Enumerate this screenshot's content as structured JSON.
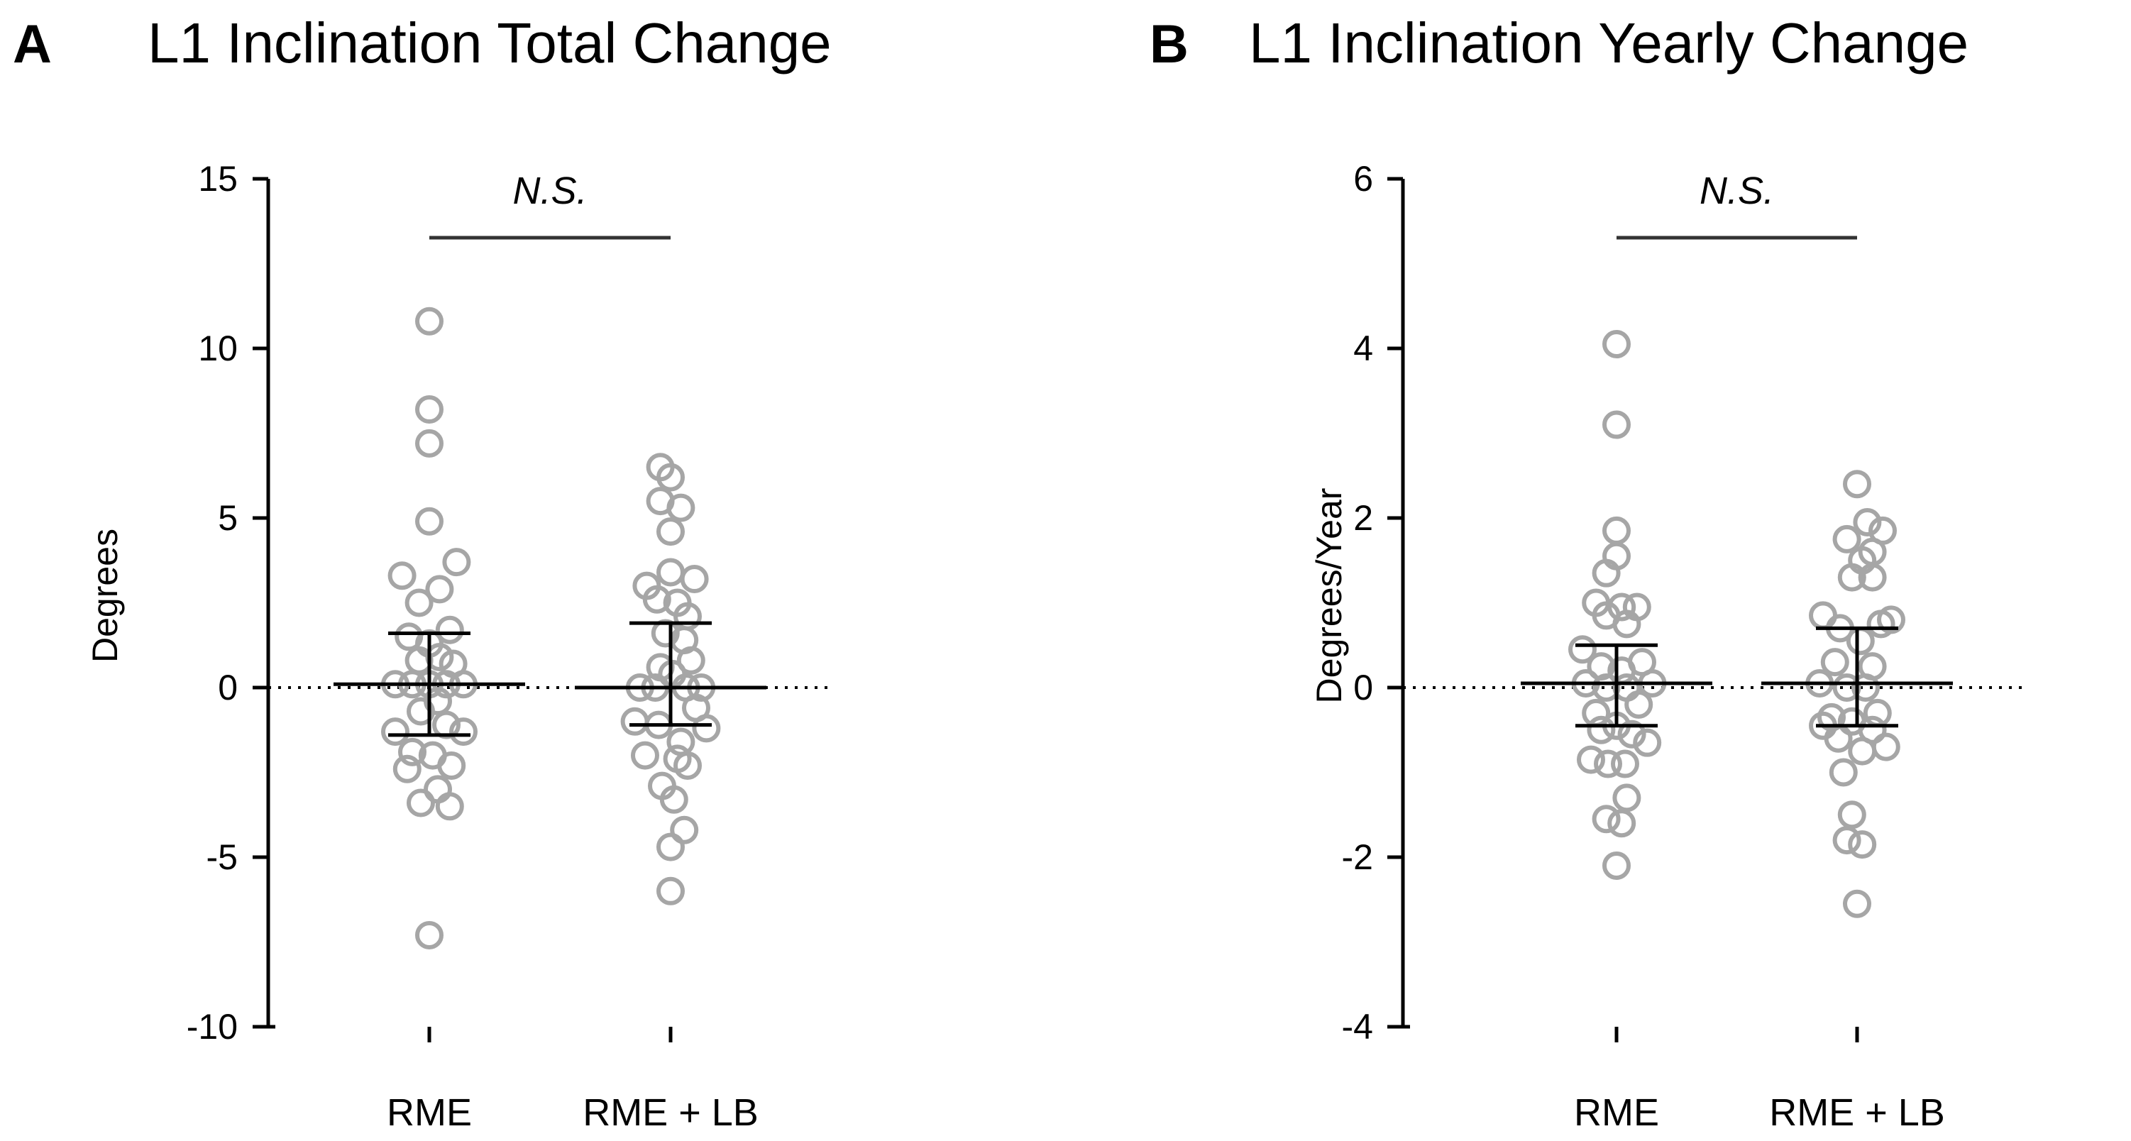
{
  "chart_data": [
    {
      "type": "scatter",
      "panel_letter": "A",
      "title": "L1 Inclination Total Change",
      "xlabel": "",
      "ylabel": "Degrees",
      "ylim": [
        -10,
        15
      ],
      "yticks": [
        15,
        10,
        5,
        0,
        -5,
        -10
      ],
      "ytick_labels": [
        "15",
        "10",
        "5",
        "0",
        "-5",
        "-10"
      ],
      "categories": [
        "RME",
        "RME + LB"
      ],
      "reference_line_y": 0,
      "significance": {
        "label": "N.S.",
        "from": "RME",
        "to": "RME + LB"
      },
      "series": [
        {
          "name": "RME",
          "mean": 0.1,
          "error_upper": 1.6,
          "error_lower": -1.4,
          "points": [
            {
              "y": 10.8,
              "jitter": 0.0
            },
            {
              "y": 8.2,
              "jitter": 0.0
            },
            {
              "y": 7.2,
              "jitter": 0.0
            },
            {
              "y": 4.9,
              "jitter": 0.0
            },
            {
              "y": 3.7,
              "jitter": 1.6
            },
            {
              "y": 3.3,
              "jitter": -1.6
            },
            {
              "y": 2.9,
              "jitter": 0.6
            },
            {
              "y": 2.5,
              "jitter": -0.6
            },
            {
              "y": 1.7,
              "jitter": 1.2
            },
            {
              "y": 1.5,
              "jitter": -1.2
            },
            {
              "y": 1.3,
              "jitter": 0.0
            },
            {
              "y": 0.9,
              "jitter": 0.6
            },
            {
              "y": 0.8,
              "jitter": -0.6
            },
            {
              "y": 0.7,
              "jitter": 1.4
            },
            {
              "y": 0.1,
              "jitter": -2.0
            },
            {
              "y": 0.1,
              "jitter": -1.0
            },
            {
              "y": 0.1,
              "jitter": 0.0
            },
            {
              "y": 0.1,
              "jitter": 1.0
            },
            {
              "y": 0.1,
              "jitter": 2.0
            },
            {
              "y": -0.4,
              "jitter": 0.5
            },
            {
              "y": -0.7,
              "jitter": -0.5
            },
            {
              "y": -1.1,
              "jitter": 1.0
            },
            {
              "y": -1.3,
              "jitter": -2.0
            },
            {
              "y": -1.3,
              "jitter": 2.0
            },
            {
              "y": -1.9,
              "jitter": -1.0
            },
            {
              "y": -2.0,
              "jitter": 0.2
            },
            {
              "y": -2.3,
              "jitter": 1.3
            },
            {
              "y": -2.4,
              "jitter": -1.3
            },
            {
              "y": -3.0,
              "jitter": 0.5
            },
            {
              "y": -3.4,
              "jitter": -0.5
            },
            {
              "y": -3.5,
              "jitter": 1.2
            },
            {
              "y": -7.3,
              "jitter": 0.0
            }
          ]
        },
        {
          "name": "RME + LB",
          "mean": 0.0,
          "error_upper": 1.9,
          "error_lower": -1.1,
          "points": [
            {
              "y": 6.5,
              "jitter": -0.6
            },
            {
              "y": 6.2,
              "jitter": 0.0
            },
            {
              "y": 5.5,
              "jitter": -0.6
            },
            {
              "y": 5.3,
              "jitter": 0.6
            },
            {
              "y": 4.6,
              "jitter": 0.0
            },
            {
              "y": 3.4,
              "jitter": 0.0
            },
            {
              "y": 3.2,
              "jitter": 1.4
            },
            {
              "y": 3.0,
              "jitter": -1.4
            },
            {
              "y": 2.6,
              "jitter": -0.8
            },
            {
              "y": 2.5,
              "jitter": 0.4
            },
            {
              "y": 2.1,
              "jitter": 1.0
            },
            {
              "y": 1.6,
              "jitter": -0.3
            },
            {
              "y": 1.4,
              "jitter": 0.8
            },
            {
              "y": 0.8,
              "jitter": 1.2
            },
            {
              "y": 0.6,
              "jitter": -0.6
            },
            {
              "y": 0.4,
              "jitter": 0.1
            },
            {
              "y": 0.0,
              "jitter": -1.8
            },
            {
              "y": 0.0,
              "jitter": -0.9
            },
            {
              "y": 0.0,
              "jitter": 0.9
            },
            {
              "y": 0.0,
              "jitter": 1.8
            },
            {
              "y": -0.6,
              "jitter": 1.5
            },
            {
              "y": -1.0,
              "jitter": -2.1
            },
            {
              "y": -1.1,
              "jitter": -0.7
            },
            {
              "y": -1.2,
              "jitter": 2.1
            },
            {
              "y": -1.6,
              "jitter": 0.6
            },
            {
              "y": -2.0,
              "jitter": -1.5
            },
            {
              "y": -2.1,
              "jitter": 0.4
            },
            {
              "y": -2.3,
              "jitter": 1.0
            },
            {
              "y": -2.9,
              "jitter": -0.5
            },
            {
              "y": -3.3,
              "jitter": 0.2
            },
            {
              "y": -4.2,
              "jitter": 0.8
            },
            {
              "y": -4.7,
              "jitter": 0.0
            },
            {
              "y": -6.0,
              "jitter": 0.0
            }
          ]
        }
      ]
    },
    {
      "type": "scatter",
      "panel_letter": "B",
      "title": "L1 Inclination Yearly Change",
      "xlabel": "",
      "ylabel": "Degrees/Year",
      "ylim": [
        -4,
        6
      ],
      "yticks": [
        6,
        4,
        2,
        0,
        -2,
        -4
      ],
      "ytick_labels": [
        "6",
        "4",
        "2",
        "0",
        "-2",
        "-4"
      ],
      "categories": [
        "RME",
        "RME + LB"
      ],
      "reference_line_y": 0,
      "significance": {
        "label": "N.S.",
        "from": "RME",
        "to": "RME + LB"
      },
      "series": [
        {
          "name": "RME",
          "mean": 0.05,
          "error_upper": 0.5,
          "error_lower": -0.45,
          "points": [
            {
              "y": 4.05,
              "jitter": 0.0
            },
            {
              "y": 3.1,
              "jitter": 0.0
            },
            {
              "y": 1.85,
              "jitter": 0.0
            },
            {
              "y": 1.55,
              "jitter": 0.0
            },
            {
              "y": 1.35,
              "jitter": -0.6
            },
            {
              "y": 1.0,
              "jitter": -1.2
            },
            {
              "y": 0.95,
              "jitter": 0.3
            },
            {
              "y": 0.95,
              "jitter": 1.2
            },
            {
              "y": 0.85,
              "jitter": -0.6
            },
            {
              "y": 0.75,
              "jitter": 0.6
            },
            {
              "y": 0.45,
              "jitter": -2.0
            },
            {
              "y": 0.3,
              "jitter": 1.5
            },
            {
              "y": 0.25,
              "jitter": -0.9
            },
            {
              "y": 0.2,
              "jitter": 0.3
            },
            {
              "y": 0.05,
              "jitter": 2.1
            },
            {
              "y": 0.05,
              "jitter": -1.8
            },
            {
              "y": 0.0,
              "jitter": -0.6
            },
            {
              "y": 0.0,
              "jitter": 0.6
            },
            {
              "y": -0.2,
              "jitter": 1.3
            },
            {
              "y": -0.3,
              "jitter": -1.2
            },
            {
              "y": -0.45,
              "jitter": 0.0
            },
            {
              "y": -0.5,
              "jitter": -0.9
            },
            {
              "y": -0.55,
              "jitter": 0.9
            },
            {
              "y": -0.65,
              "jitter": 1.8
            },
            {
              "y": -0.85,
              "jitter": -1.5
            },
            {
              "y": -0.9,
              "jitter": -0.5
            },
            {
              "y": -0.9,
              "jitter": 0.5
            },
            {
              "y": -1.3,
              "jitter": 0.6
            },
            {
              "y": -1.55,
              "jitter": -0.6
            },
            {
              "y": -1.6,
              "jitter": 0.3
            },
            {
              "y": -2.1,
              "jitter": 0.0
            }
          ]
        },
        {
          "name": "RME + LB",
          "mean": 0.05,
          "error_upper": 0.7,
          "error_lower": -0.45,
          "points": [
            {
              "y": 2.4,
              "jitter": 0.0
            },
            {
              "y": 1.95,
              "jitter": 0.6
            },
            {
              "y": 1.85,
              "jitter": 1.5
            },
            {
              "y": 1.75,
              "jitter": -0.6
            },
            {
              "y": 1.6,
              "jitter": 0.9
            },
            {
              "y": 1.5,
              "jitter": 0.3
            },
            {
              "y": 1.3,
              "jitter": -0.3
            },
            {
              "y": 1.3,
              "jitter": 0.9
            },
            {
              "y": 0.85,
              "jitter": -2.0
            },
            {
              "y": 0.8,
              "jitter": 2.0
            },
            {
              "y": 0.75,
              "jitter": 1.4
            },
            {
              "y": 0.7,
              "jitter": -1.0
            },
            {
              "y": 0.55,
              "jitter": 0.2
            },
            {
              "y": 0.3,
              "jitter": -1.3
            },
            {
              "y": 0.25,
              "jitter": 0.9
            },
            {
              "y": 0.05,
              "jitter": -2.2
            },
            {
              "y": 0.0,
              "jitter": -0.6
            },
            {
              "y": 0.0,
              "jitter": 0.5
            },
            {
              "y": -0.3,
              "jitter": 1.2
            },
            {
              "y": -0.35,
              "jitter": -1.5
            },
            {
              "y": -0.4,
              "jitter": -0.3
            },
            {
              "y": -0.45,
              "jitter": -2.0
            },
            {
              "y": -0.5,
              "jitter": 0.9
            },
            {
              "y": -0.6,
              "jitter": -1.1
            },
            {
              "y": -0.7,
              "jitter": 1.7
            },
            {
              "y": -0.75,
              "jitter": 0.3
            },
            {
              "y": -1.0,
              "jitter": -0.8
            },
            {
              "y": -1.5,
              "jitter": -0.3
            },
            {
              "y": -1.8,
              "jitter": -0.6
            },
            {
              "y": -1.85,
              "jitter": 0.3
            },
            {
              "y": -2.55,
              "jitter": 0.0
            }
          ]
        }
      ]
    }
  ]
}
